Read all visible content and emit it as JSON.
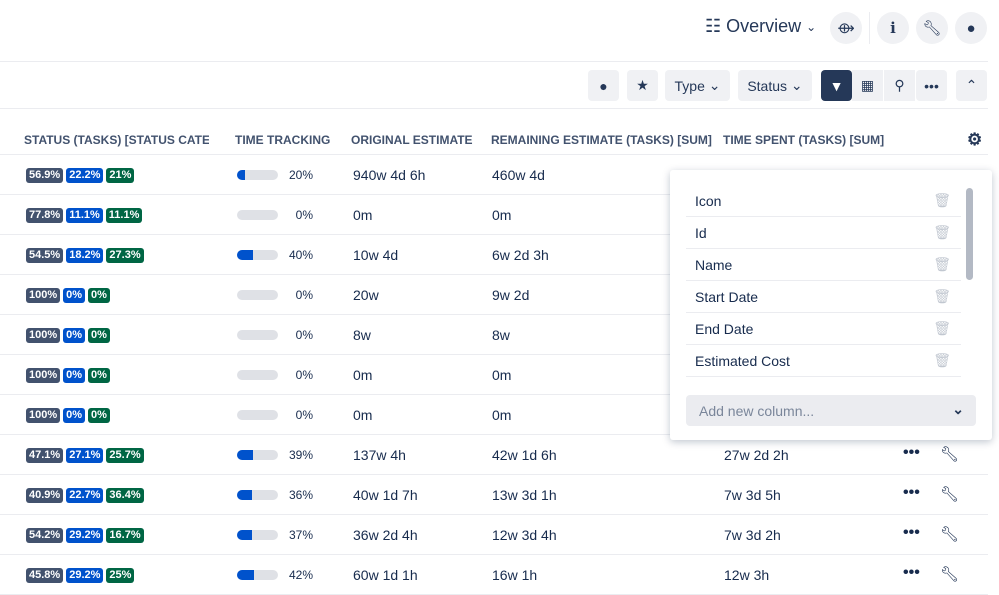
{
  "header": {
    "view_label": "Overview"
  },
  "toolbar": {
    "type_label": "Type",
    "status_label": "Status"
  },
  "columns": [
    "STATUS (TASKS) [STATUS CATEGO",
    "TIME TRACKING",
    "ORIGINAL ESTIMATE",
    "REMAINING ESTIMATE (TASKS) [SUM]",
    "TIME SPENT (TASKS) [SUM]"
  ],
  "rows": [
    {
      "s": [
        "56.9%",
        "22.2%",
        "21%"
      ],
      "p": 20,
      "pt": "20%",
      "o": "940w 4d 6h",
      "r": "460w 4d",
      "t": ""
    },
    {
      "s": [
        "77.8%",
        "11.1%",
        "11.1%"
      ],
      "p": 0,
      "pt": "0%",
      "o": "0m",
      "r": "0m",
      "t": ""
    },
    {
      "s": [
        "54.5%",
        "18.2%",
        "27.3%"
      ],
      "p": 40,
      "pt": "40%",
      "o": "10w 4d",
      "r": "6w 2d 3h",
      "t": ""
    },
    {
      "s": [
        "100%",
        "0%",
        "0%"
      ],
      "p": 0,
      "pt": "0%",
      "o": "20w",
      "r": "9w 2d",
      "t": ""
    },
    {
      "s": [
        "100%",
        "0%",
        "0%"
      ],
      "p": 0,
      "pt": "0%",
      "o": "8w",
      "r": "8w",
      "t": ""
    },
    {
      "s": [
        "100%",
        "0%",
        "0%"
      ],
      "p": 0,
      "pt": "0%",
      "o": "0m",
      "r": "0m",
      "t": ""
    },
    {
      "s": [
        "100%",
        "0%",
        "0%"
      ],
      "p": 0,
      "pt": "0%",
      "o": "0m",
      "r": "0m",
      "t": ""
    },
    {
      "s": [
        "47.1%",
        "27.1%",
        "25.7%"
      ],
      "p": 39,
      "pt": "39%",
      "o": "137w 4h",
      "r": "42w 1d 6h",
      "t": "27w 2d 2h"
    },
    {
      "s": [
        "40.9%",
        "22.7%",
        "36.4%"
      ],
      "p": 36,
      "pt": "36%",
      "o": "40w 1d 7h",
      "r": "13w 3d 1h",
      "t": "7w 3d 5h"
    },
    {
      "s": [
        "54.2%",
        "29.2%",
        "16.7%"
      ],
      "p": 37,
      "pt": "37%",
      "o": "36w 2d 4h",
      "r": "12w 3d 4h",
      "t": "7w 3d 2h"
    },
    {
      "s": [
        "45.8%",
        "29.2%",
        "25%"
      ],
      "p": 42,
      "pt": "42%",
      "o": "60w 1d 1h",
      "r": "16w 1h",
      "t": "12w 3h"
    }
  ],
  "column_picker": {
    "items": [
      "Icon",
      "Id",
      "Name",
      "Start Date",
      "End Date",
      "Estimated Cost"
    ],
    "add_placeholder": "Add new column..."
  }
}
